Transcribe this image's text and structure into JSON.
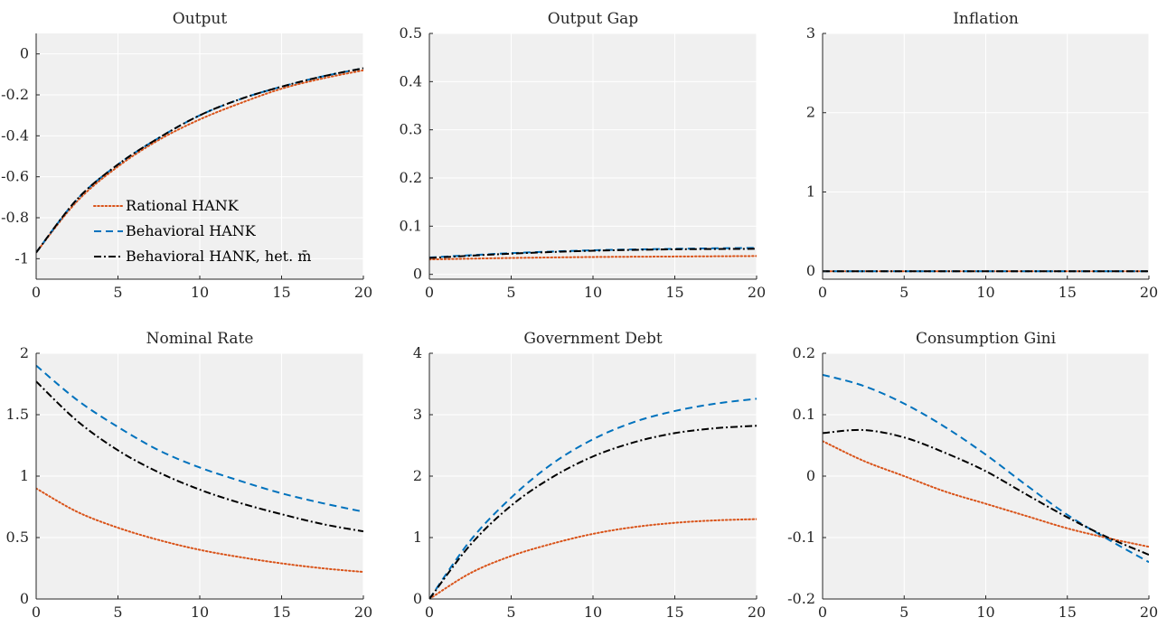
{
  "figure": {
    "legend": {
      "placement": "lower-left of first panel",
      "entries": [
        {
          "label": "Rational HANK",
          "series": 0
        },
        {
          "label": "Behavioral HANK",
          "series": 1
        },
        {
          "label": "Behavioral HANK, het. m̄",
          "series": 2
        }
      ]
    },
    "series_styles": [
      {
        "color": "#d95319",
        "style": "dotted"
      },
      {
        "color": "#0072bd",
        "style": "dashed"
      },
      {
        "color": "#000000",
        "style": "dash-dot"
      }
    ],
    "axes_background": "#f0f0f0",
    "grid": true
  },
  "chart_data": [
    {
      "type": "line",
      "title": "Output",
      "xlim": [
        0,
        20
      ],
      "ylim": [
        -1.1,
        0.1
      ],
      "xticks": [
        0,
        5,
        10,
        15,
        20
      ],
      "xtick_labels": [
        "0",
        "5",
        "10",
        "15",
        "20"
      ],
      "yticks": [
        -1,
        -0.8,
        -0.6,
        -0.4,
        -0.2,
        0
      ],
      "ytick_labels": [
        "-1",
        "-0.8",
        "-0.6",
        "-0.4",
        "-0.2",
        "0"
      ],
      "x": [
        0,
        2.5,
        5,
        7.5,
        10,
        12.5,
        15,
        17.5,
        20
      ],
      "series": [
        {
          "name": "Rational HANK",
          "values": [
            -0.97,
            -0.72,
            -0.55,
            -0.42,
            -0.32,
            -0.24,
            -0.17,
            -0.12,
            -0.08
          ]
        },
        {
          "name": "Behavioral HANK",
          "values": [
            -0.97,
            -0.71,
            -0.54,
            -0.41,
            -0.3,
            -0.22,
            -0.16,
            -0.11,
            -0.07
          ]
        },
        {
          "name": "Behavioral HANK, het. m̄",
          "values": [
            -0.97,
            -0.71,
            -0.54,
            -0.41,
            -0.3,
            -0.22,
            -0.16,
            -0.11,
            -0.07
          ]
        }
      ]
    },
    {
      "type": "line",
      "title": "Output Gap",
      "xlim": [
        0,
        20
      ],
      "ylim": [
        -0.01,
        0.5
      ],
      "xticks": [
        0,
        5,
        10,
        15,
        20
      ],
      "xtick_labels": [
        "0",
        "5",
        "10",
        "15",
        "20"
      ],
      "yticks": [
        0,
        0.1,
        0.2,
        0.3,
        0.4,
        0.5
      ],
      "ytick_labels": [
        "0",
        "0.1",
        "0.2",
        "0.3",
        "0.4",
        "0.5"
      ],
      "x": [
        0,
        5,
        10,
        15,
        20
      ],
      "series": [
        {
          "name": "Rational HANK",
          "values": [
            0.031,
            0.034,
            0.036,
            0.037,
            0.038
          ]
        },
        {
          "name": "Behavioral HANK",
          "values": [
            0.035,
            0.044,
            0.05,
            0.053,
            0.055
          ]
        },
        {
          "name": "Behavioral HANK, het. m̄",
          "values": [
            0.034,
            0.043,
            0.049,
            0.052,
            0.053
          ]
        }
      ]
    },
    {
      "type": "line",
      "title": "Inflation",
      "xlim": [
        0,
        20
      ],
      "ylim": [
        -0.1,
        3
      ],
      "xticks": [
        0,
        5,
        10,
        15,
        20
      ],
      "xtick_labels": [
        "0",
        "5",
        "10",
        "15",
        "20"
      ],
      "yticks": [
        0,
        1,
        2,
        3
      ],
      "ytick_labels": [
        "0",
        "1",
        "2",
        "3"
      ],
      "x": [
        0,
        20
      ],
      "series": [
        {
          "name": "Rational HANK",
          "values": [
            0,
            0
          ]
        },
        {
          "name": "Behavioral HANK",
          "values": [
            0,
            0
          ]
        },
        {
          "name": "Behavioral HANK, het. m̄",
          "values": [
            0,
            0
          ]
        }
      ]
    },
    {
      "type": "line",
      "title": "Nominal Rate",
      "xlim": [
        0,
        20
      ],
      "ylim": [
        0,
        2
      ],
      "xticks": [
        0,
        5,
        10,
        15,
        20
      ],
      "xtick_labels": [
        "0",
        "5",
        "10",
        "15",
        "20"
      ],
      "yticks": [
        0,
        0.5,
        1,
        1.5,
        2
      ],
      "ytick_labels": [
        "0",
        "0.5",
        "1",
        "1.5",
        "2"
      ],
      "x": [
        0,
        2.5,
        5,
        7.5,
        10,
        12.5,
        15,
        17.5,
        20
      ],
      "series": [
        {
          "name": "Rational HANK",
          "values": [
            0.9,
            0.71,
            0.58,
            0.48,
            0.4,
            0.34,
            0.29,
            0.25,
            0.22
          ]
        },
        {
          "name": "Behavioral HANK",
          "values": [
            1.9,
            1.62,
            1.4,
            1.21,
            1.07,
            0.96,
            0.86,
            0.78,
            0.71
          ]
        },
        {
          "name": "Behavioral HANK, het. m̄",
          "values": [
            1.77,
            1.45,
            1.21,
            1.03,
            0.89,
            0.78,
            0.69,
            0.61,
            0.55
          ]
        }
      ]
    },
    {
      "type": "line",
      "title": "Government Debt",
      "xlim": [
        0,
        20
      ],
      "ylim": [
        0,
        4
      ],
      "xticks": [
        0,
        5,
        10,
        15,
        20
      ],
      "xtick_labels": [
        "0",
        "5",
        "10",
        "15",
        "20"
      ],
      "yticks": [
        0,
        1,
        2,
        3,
        4
      ],
      "ytick_labels": [
        "0",
        "1",
        "2",
        "3",
        "4"
      ],
      "x": [
        0,
        2.5,
        5,
        7.5,
        10,
        12.5,
        15,
        17.5,
        20
      ],
      "series": [
        {
          "name": "Rational HANK",
          "values": [
            0,
            0.42,
            0.7,
            0.9,
            1.06,
            1.17,
            1.24,
            1.28,
            1.3
          ]
        },
        {
          "name": "Behavioral HANK",
          "values": [
            0,
            0.95,
            1.65,
            2.2,
            2.6,
            2.88,
            3.06,
            3.18,
            3.26
          ]
        },
        {
          "name": "Behavioral HANK, het. m̄",
          "values": [
            0,
            0.88,
            1.52,
            1.98,
            2.32,
            2.55,
            2.7,
            2.78,
            2.82
          ]
        }
      ]
    },
    {
      "type": "line",
      "title": "Consumption Gini",
      "xlim": [
        0,
        20
      ],
      "ylim": [
        -0.2,
        0.2
      ],
      "xticks": [
        0,
        5,
        10,
        15,
        20
      ],
      "xtick_labels": [
        "0",
        "5",
        "10",
        "15",
        "20"
      ],
      "yticks": [
        -0.2,
        -0.1,
        0,
        0.1,
        0.2
      ],
      "ytick_labels": [
        "-0.2",
        "-0.1",
        "0",
        "0.1",
        "0.2"
      ],
      "x": [
        0,
        2.5,
        5,
        7.5,
        10,
        12.5,
        15,
        17.5,
        20
      ],
      "series": [
        {
          "name": "Rational HANK",
          "values": [
            0.057,
            0.025,
            0.0,
            -0.025,
            -0.045,
            -0.065,
            -0.085,
            -0.101,
            -0.115
          ]
        },
        {
          "name": "Behavioral HANK",
          "values": [
            0.165,
            0.147,
            0.118,
            0.08,
            0.035,
            -0.015,
            -0.063,
            -0.103,
            -0.14
          ]
        },
        {
          "name": "Behavioral HANK, het. m̄",
          "values": [
            0.07,
            0.075,
            0.063,
            0.038,
            0.008,
            -0.03,
            -0.067,
            -0.1,
            -0.128
          ]
        }
      ]
    }
  ]
}
